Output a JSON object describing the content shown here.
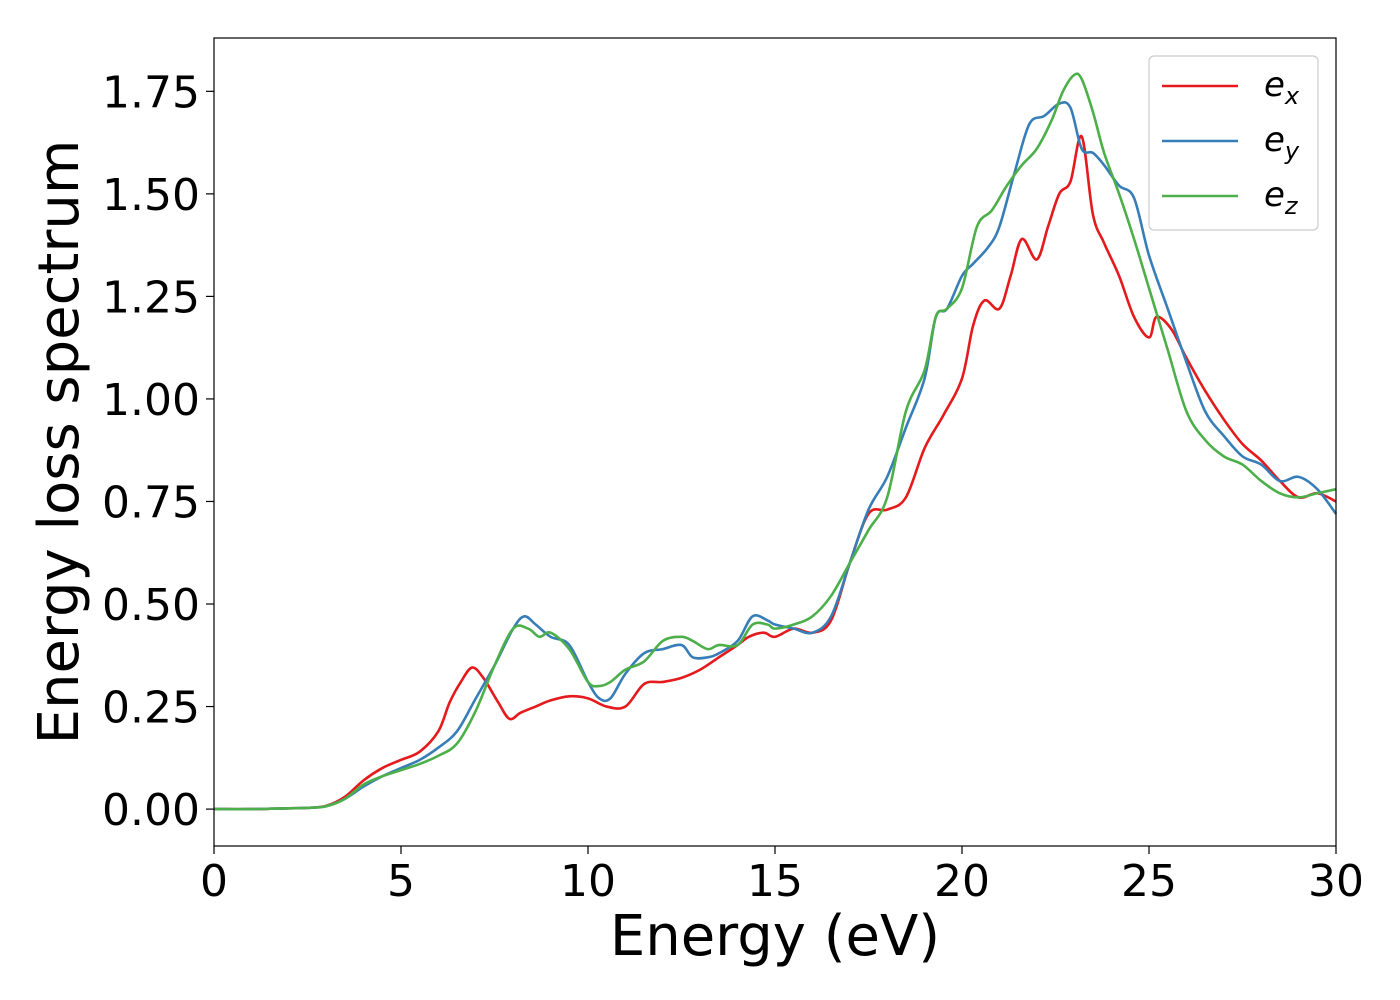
{
  "chart_data": {
    "type": "line",
    "title": "",
    "xlabel": "Energy (eV)",
    "ylabel": "Energy loss spectrum",
    "xlim": [
      0,
      30
    ],
    "ylim": [
      -0.09,
      1.88
    ],
    "xticks": [
      0,
      5,
      10,
      15,
      20,
      25,
      30
    ],
    "xtick_labels": [
      "0",
      "5",
      "10",
      "15",
      "20",
      "25",
      "30"
    ],
    "yticks": [
      0.0,
      0.25,
      0.5,
      0.75,
      1.0,
      1.25,
      1.5,
      1.75
    ],
    "ytick_labels": [
      "0.00",
      "0.25",
      "0.50",
      "0.75",
      "1.00",
      "1.25",
      "1.50",
      "1.75"
    ],
    "grid": false,
    "legend_position": "top-right",
    "series": [
      {
        "name": "e_x",
        "label_base": "e",
        "label_sub": "x",
        "color": "#e41a1c",
        "x": [
          0,
          1,
          2,
          2.5,
          3,
          3.5,
          4,
          4.5,
          5,
          5.5,
          6,
          6.3,
          6.6,
          6.9,
          7.2,
          7.6,
          7.9,
          8.2,
          8.6,
          9,
          9.5,
          10,
          10.5,
          11,
          11.5,
          12,
          12.5,
          13,
          13.5,
          14,
          14.3,
          14.7,
          15,
          15.5,
          16,
          16.5,
          17,
          17.5,
          18,
          18.5,
          19,
          19.5,
          20,
          20.3,
          20.6,
          21,
          21.3,
          21.6,
          22,
          22.3,
          22.6,
          22.9,
          23.2,
          23.5,
          23.8,
          24.2,
          24.6,
          25,
          25.2,
          25.6,
          26,
          26.5,
          27,
          27.5,
          28,
          28.5,
          29,
          29.5,
          30
        ],
        "y": [
          0.0,
          0.0,
          0.002,
          0.003,
          0.008,
          0.03,
          0.07,
          0.1,
          0.12,
          0.14,
          0.19,
          0.26,
          0.31,
          0.345,
          0.32,
          0.26,
          0.22,
          0.235,
          0.25,
          0.265,
          0.275,
          0.27,
          0.25,
          0.25,
          0.305,
          0.31,
          0.32,
          0.34,
          0.37,
          0.4,
          0.42,
          0.43,
          0.42,
          0.44,
          0.43,
          0.46,
          0.6,
          0.72,
          0.73,
          0.76,
          0.88,
          0.96,
          1.05,
          1.18,
          1.24,
          1.22,
          1.3,
          1.39,
          1.34,
          1.42,
          1.5,
          1.53,
          1.64,
          1.45,
          1.38,
          1.3,
          1.2,
          1.15,
          1.2,
          1.17,
          1.1,
          1.02,
          0.95,
          0.89,
          0.85,
          0.8,
          0.76,
          0.77,
          0.75
        ]
      },
      {
        "name": "e_y",
        "label_base": "e",
        "label_sub": "y",
        "color": "#377eb8",
        "x": [
          0,
          1,
          2,
          2.5,
          3,
          3.5,
          4,
          4.5,
          5,
          5.5,
          6,
          6.5,
          7,
          7.5,
          8,
          8.3,
          8.6,
          9,
          9.5,
          10,
          10.3,
          10.6,
          11,
          11.5,
          12,
          12.5,
          12.8,
          13.2,
          13.5,
          14,
          14.4,
          14.8,
          15,
          15.5,
          16,
          16.5,
          17,
          17.5,
          18,
          18.5,
          19,
          19.3,
          19.6,
          20,
          20.3,
          20.7,
          21,
          21.4,
          21.8,
          22.2,
          22.6,
          22.9,
          23.2,
          23.5,
          23.8,
          24.2,
          24.6,
          25,
          25.5,
          26,
          26.5,
          27,
          27.5,
          28,
          28.5,
          29,
          29.5,
          30
        ],
        "y": [
          0.0,
          0.0,
          0.002,
          0.003,
          0.007,
          0.025,
          0.055,
          0.08,
          0.1,
          0.12,
          0.15,
          0.19,
          0.27,
          0.35,
          0.44,
          0.47,
          0.45,
          0.42,
          0.4,
          0.31,
          0.27,
          0.27,
          0.33,
          0.38,
          0.39,
          0.4,
          0.37,
          0.37,
          0.38,
          0.41,
          0.47,
          0.46,
          0.45,
          0.44,
          0.43,
          0.47,
          0.6,
          0.73,
          0.81,
          0.93,
          1.05,
          1.2,
          1.22,
          1.3,
          1.33,
          1.37,
          1.42,
          1.55,
          1.67,
          1.69,
          1.72,
          1.71,
          1.61,
          1.6,
          1.57,
          1.52,
          1.49,
          1.35,
          1.22,
          1.09,
          0.97,
          0.91,
          0.86,
          0.84,
          0.8,
          0.81,
          0.78,
          0.72
        ]
      },
      {
        "name": "e_z",
        "label_base": "e",
        "label_sub": "z",
        "color": "#4daf4a",
        "x": [
          0,
          1,
          2,
          2.5,
          3,
          3.5,
          4,
          4.5,
          5,
          5.5,
          6,
          6.5,
          7,
          7.5,
          8,
          8.4,
          8.7,
          9,
          9.5,
          10,
          10.3,
          10.6,
          11,
          11.5,
          12,
          12.5,
          12.8,
          13.2,
          13.5,
          14,
          14.4,
          14.8,
          15,
          15.5,
          16,
          16.5,
          17,
          17.5,
          18,
          18.5,
          19,
          19.3,
          19.6,
          20,
          20.4,
          20.8,
          21.2,
          21.6,
          22,
          22.4,
          22.7,
          23,
          23.2,
          23.5,
          23.8,
          24.2,
          24.6,
          25,
          25.5,
          26,
          26.5,
          27,
          27.5,
          28,
          28.5,
          29,
          29.5,
          30
        ],
        "y": [
          0.0,
          0.0,
          0.002,
          0.003,
          0.007,
          0.025,
          0.06,
          0.08,
          0.095,
          0.11,
          0.13,
          0.16,
          0.24,
          0.35,
          0.44,
          0.44,
          0.42,
          0.43,
          0.39,
          0.31,
          0.3,
          0.31,
          0.34,
          0.36,
          0.41,
          0.42,
          0.41,
          0.39,
          0.4,
          0.4,
          0.45,
          0.45,
          0.44,
          0.45,
          0.47,
          0.52,
          0.6,
          0.68,
          0.76,
          0.97,
          1.07,
          1.2,
          1.22,
          1.27,
          1.42,
          1.46,
          1.52,
          1.57,
          1.61,
          1.68,
          1.75,
          1.79,
          1.78,
          1.7,
          1.6,
          1.5,
          1.39,
          1.27,
          1.12,
          0.97,
          0.9,
          0.86,
          0.84,
          0.8,
          0.77,
          0.76,
          0.77,
          0.78
        ]
      }
    ]
  }
}
